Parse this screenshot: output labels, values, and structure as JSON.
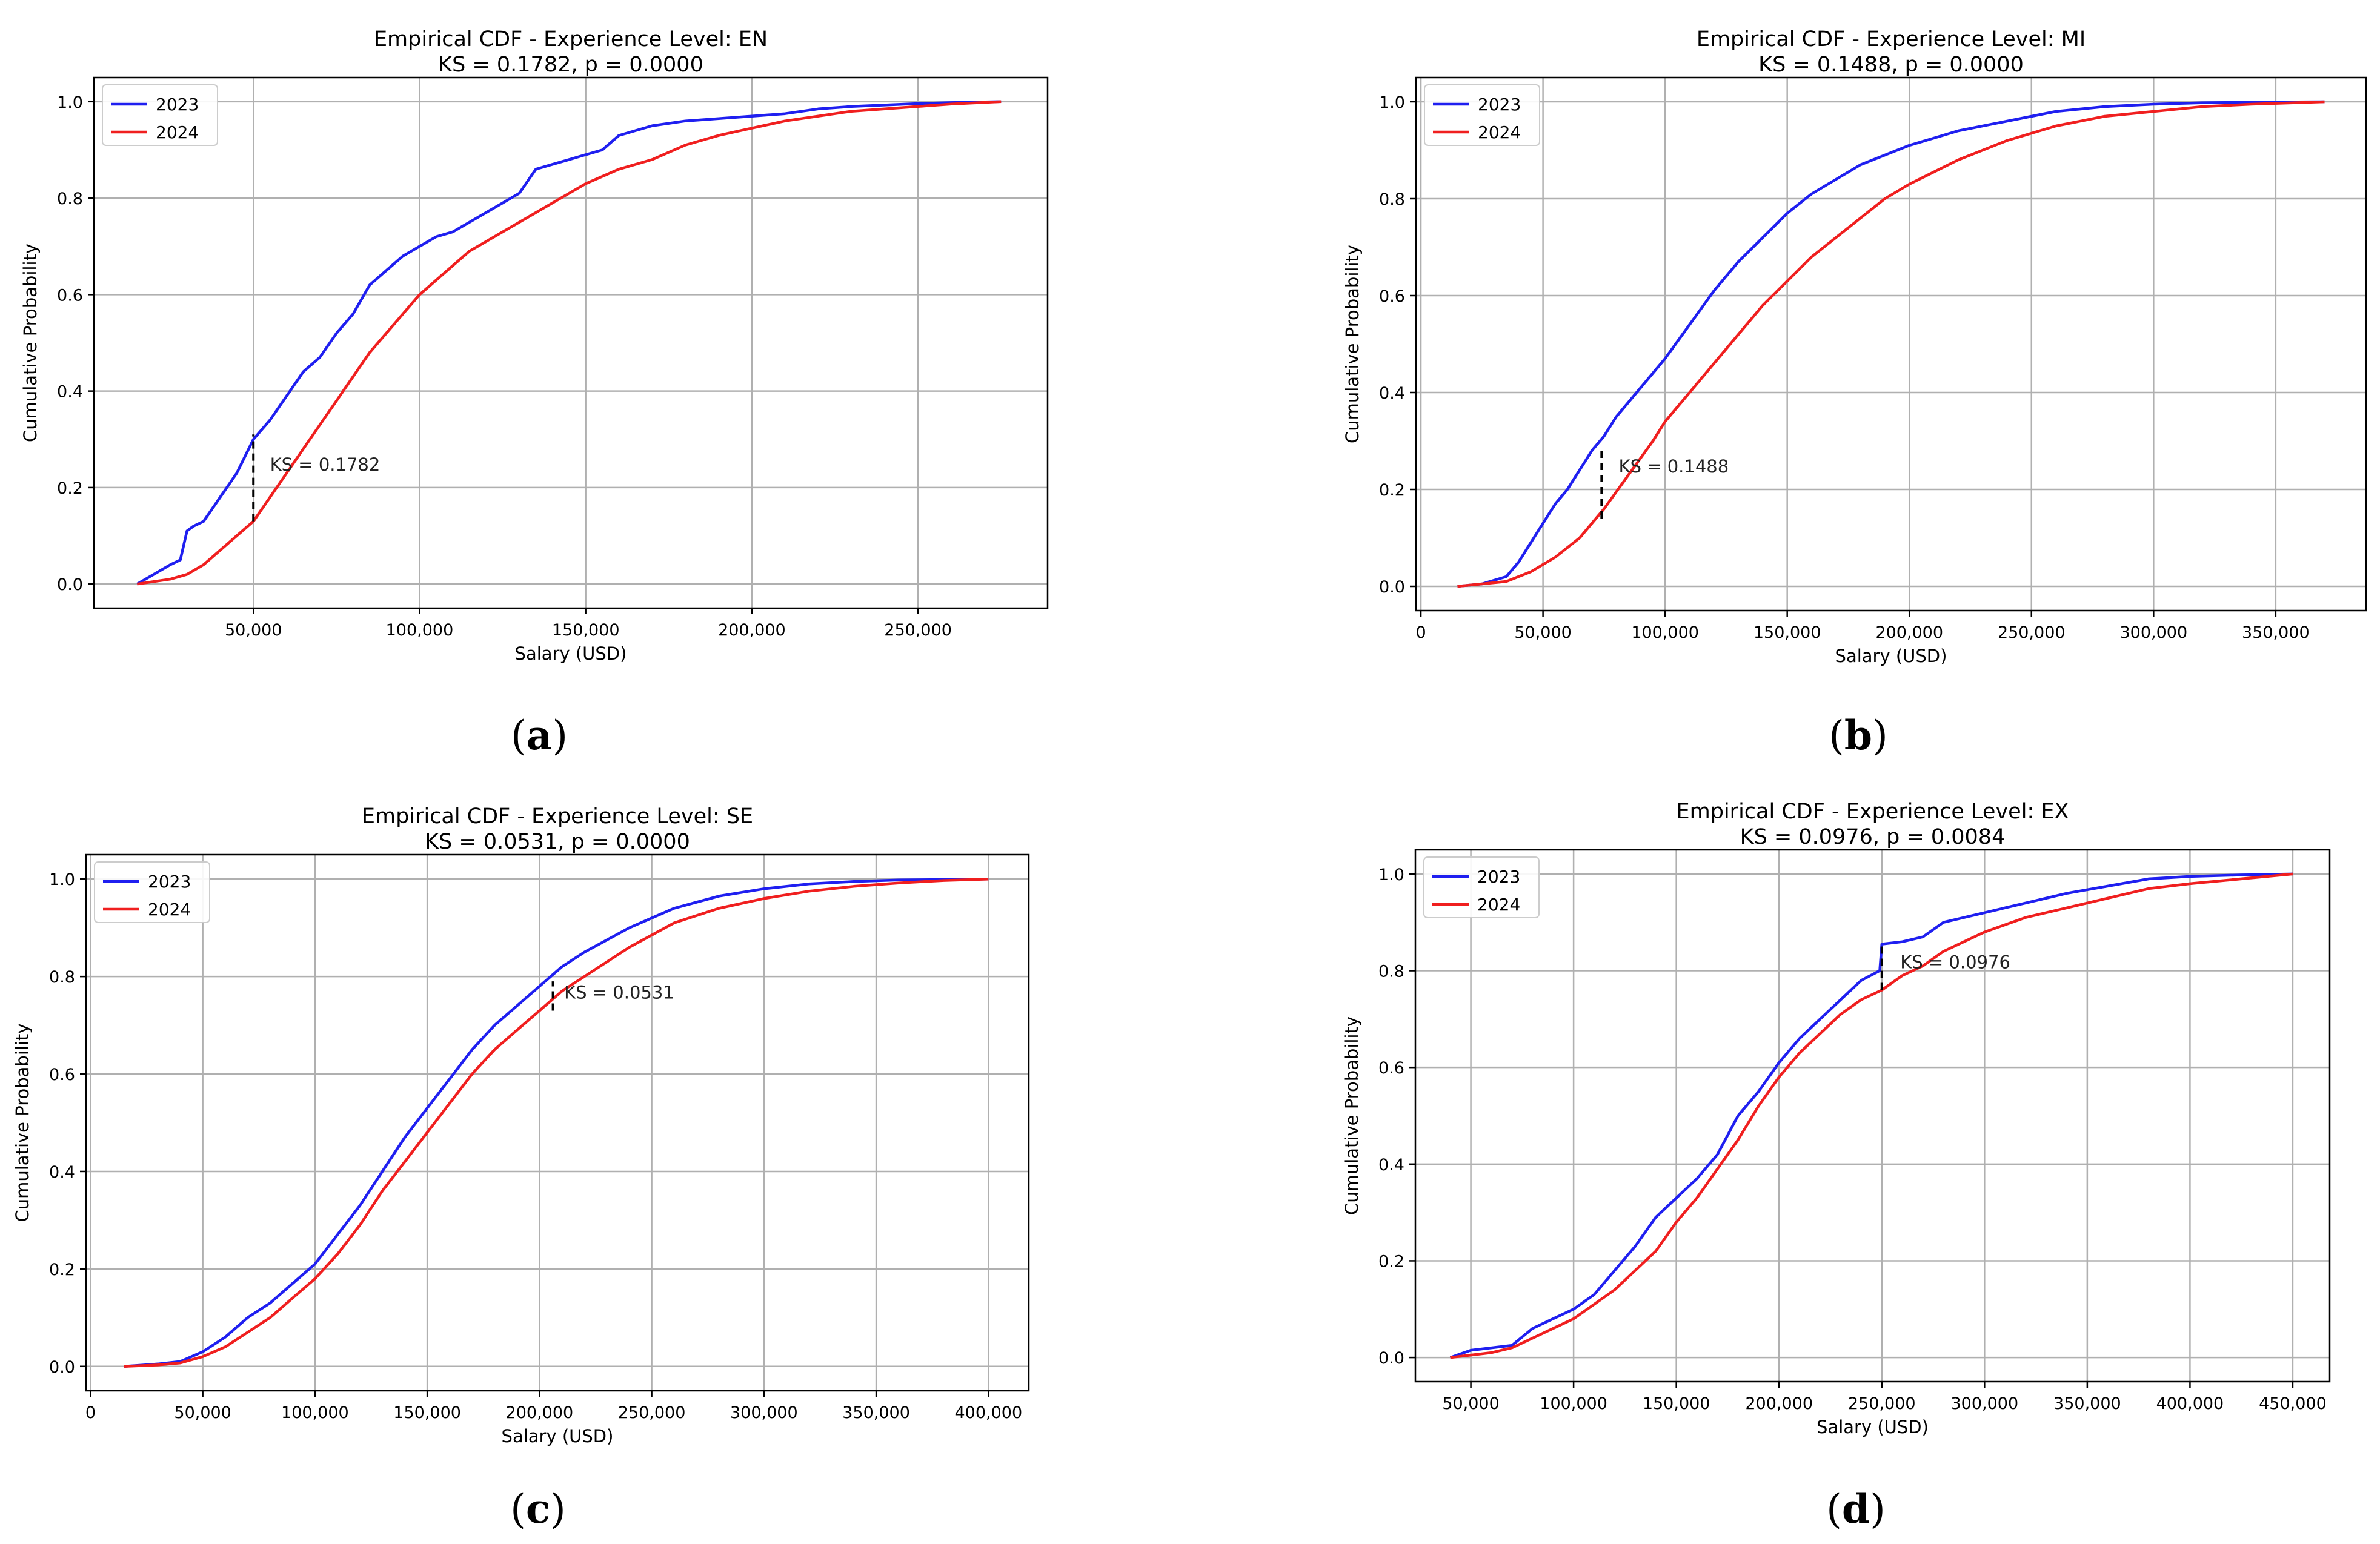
{
  "figure": {
    "panel_labels": [
      "(a)",
      "(b)",
      "(c)",
      "(d)"
    ],
    "panel_letters": [
      "a",
      "b",
      "c",
      "d"
    ]
  },
  "colors": {
    "series_2023": "#1f1ff0",
    "series_2024": "#f01f1f",
    "grid": "#b0b0b0",
    "ks_line": "#000000"
  },
  "chart_data": [
    {
      "type": "line",
      "title": "Empirical CDF - Experience Level: EN",
      "subtitle": "KS = 0.1782, p = 0.0000",
      "xlabel": "Salary (USD)",
      "ylabel": "Cumulative Probability",
      "xlim": [
        2000,
        289000
      ],
      "ylim": [
        -0.05,
        1.05
      ],
      "xticks": [
        50000,
        100000,
        150000,
        200000,
        250000
      ],
      "xtick_labels": [
        "50,000",
        "100,000",
        "150,000",
        "200,000",
        "250,000"
      ],
      "yticks": [
        0.0,
        0.2,
        0.4,
        0.6,
        0.8,
        1.0
      ],
      "ytick_labels": [
        "0.0",
        "0.2",
        "0.4",
        "0.6",
        "0.8",
        "1.0"
      ],
      "grid": true,
      "legend": "top-left",
      "series": [
        {
          "name": "2023",
          "x": [
            15000,
            20000,
            25000,
            28000,
            30000,
            32000,
            35000,
            40000,
            45000,
            50000,
            55000,
            60000,
            65000,
            70000,
            75000,
            80000,
            85000,
            90000,
            95000,
            100000,
            105000,
            110000,
            115000,
            120000,
            125000,
            130000,
            135000,
            140000,
            145000,
            150000,
            155000,
            160000,
            170000,
            180000,
            190000,
            200000,
            210000,
            220000,
            230000,
            240000,
            250000,
            260000,
            275000
          ],
          "y": [
            0.0,
            0.02,
            0.04,
            0.05,
            0.11,
            0.12,
            0.13,
            0.18,
            0.23,
            0.3,
            0.34,
            0.39,
            0.44,
            0.47,
            0.52,
            0.56,
            0.62,
            0.65,
            0.68,
            0.7,
            0.72,
            0.73,
            0.75,
            0.77,
            0.79,
            0.81,
            0.86,
            0.87,
            0.88,
            0.89,
            0.9,
            0.93,
            0.95,
            0.96,
            0.965,
            0.97,
            0.975,
            0.985,
            0.99,
            0.993,
            0.996,
            0.998,
            1.0
          ]
        },
        {
          "name": "2024",
          "x": [
            15000,
            20000,
            25000,
            30000,
            35000,
            40000,
            45000,
            50000,
            55000,
            60000,
            65000,
            70000,
            75000,
            80000,
            85000,
            90000,
            95000,
            100000,
            105000,
            110000,
            115000,
            120000,
            125000,
            130000,
            135000,
            140000,
            150000,
            160000,
            170000,
            180000,
            190000,
            200000,
            210000,
            220000,
            230000,
            240000,
            250000,
            260000,
            275000
          ],
          "y": [
            0.0,
            0.005,
            0.01,
            0.02,
            0.04,
            0.07,
            0.1,
            0.13,
            0.18,
            0.23,
            0.28,
            0.33,
            0.38,
            0.43,
            0.48,
            0.52,
            0.56,
            0.6,
            0.63,
            0.66,
            0.69,
            0.71,
            0.73,
            0.75,
            0.77,
            0.79,
            0.83,
            0.86,
            0.88,
            0.91,
            0.93,
            0.945,
            0.96,
            0.97,
            0.98,
            0.985,
            0.99,
            0.995,
            1.0
          ]
        }
      ],
      "ks_line": {
        "x": 50000,
        "y_low": 0.13,
        "y_high": 0.31
      },
      "annotation": {
        "text": "KS = 0.1782",
        "x": 55000,
        "y": 0.25
      }
    },
    {
      "type": "line",
      "title": "Empirical CDF - Experience Level: MI",
      "subtitle": "KS = 0.1488, p = 0.0000",
      "xlabel": "Salary (USD)",
      "ylabel": "Cumulative Probability",
      "xlim": [
        -2000,
        387000
      ],
      "ylim": [
        -0.05,
        1.05
      ],
      "xticks": [
        0,
        50000,
        100000,
        150000,
        200000,
        250000,
        300000,
        350000
      ],
      "xtick_labels": [
        "0",
        "50,000",
        "100,000",
        "150,000",
        "200,000",
        "250,000",
        "300,000",
        "350,000"
      ],
      "yticks": [
        0.0,
        0.2,
        0.4,
        0.6,
        0.8,
        1.0
      ],
      "ytick_labels": [
        "0.0",
        "0.2",
        "0.4",
        "0.6",
        "0.8",
        "1.0"
      ],
      "grid": true,
      "legend": "top-left",
      "series": [
        {
          "name": "2023",
          "x": [
            15000,
            25000,
            35000,
            40000,
            45000,
            50000,
            55000,
            60000,
            65000,
            70000,
            75000,
            80000,
            85000,
            90000,
            95000,
            100000,
            110000,
            120000,
            130000,
            140000,
            150000,
            160000,
            170000,
            180000,
            190000,
            200000,
            220000,
            240000,
            260000,
            280000,
            300000,
            320000,
            340000,
            370000
          ],
          "y": [
            0.0,
            0.005,
            0.02,
            0.05,
            0.09,
            0.13,
            0.17,
            0.2,
            0.24,
            0.28,
            0.31,
            0.35,
            0.38,
            0.41,
            0.44,
            0.47,
            0.54,
            0.61,
            0.67,
            0.72,
            0.77,
            0.81,
            0.84,
            0.87,
            0.89,
            0.91,
            0.94,
            0.96,
            0.98,
            0.99,
            0.995,
            0.998,
            0.999,
            1.0
          ]
        },
        {
          "name": "2024",
          "x": [
            15000,
            25000,
            35000,
            45000,
            55000,
            65000,
            75000,
            85000,
            95000,
            100000,
            110000,
            120000,
            130000,
            140000,
            150000,
            160000,
            170000,
            180000,
            190000,
            200000,
            220000,
            240000,
            260000,
            280000,
            300000,
            320000,
            340000,
            370000
          ],
          "y": [
            0.0,
            0.005,
            0.01,
            0.03,
            0.06,
            0.1,
            0.16,
            0.23,
            0.3,
            0.34,
            0.4,
            0.46,
            0.52,
            0.58,
            0.63,
            0.68,
            0.72,
            0.76,
            0.8,
            0.83,
            0.88,
            0.92,
            0.95,
            0.97,
            0.98,
            0.99,
            0.995,
            1.0
          ]
        }
      ],
      "ks_line": {
        "x": 74000,
        "y_low": 0.14,
        "y_high": 0.29
      },
      "annotation": {
        "text": "KS = 0.1488",
        "x": 81000,
        "y": 0.25
      }
    },
    {
      "type": "line",
      "title": "Empirical CDF - Experience Level: SE",
      "subtitle": "KS = 0.0531, p = 0.0000",
      "xlabel": "Salary (USD)",
      "ylabel": "Cumulative Probability",
      "xlim": [
        -2000,
        418000
      ],
      "ylim": [
        -0.05,
        1.05
      ],
      "xticks": [
        0,
        50000,
        100000,
        150000,
        200000,
        250000,
        300000,
        350000,
        400000
      ],
      "xtick_labels": [
        "0",
        "50,000",
        "100,000",
        "150,000",
        "200,000",
        "250,000",
        "300,000",
        "350,000",
        "400,000"
      ],
      "yticks": [
        0.0,
        0.2,
        0.4,
        0.6,
        0.8,
        1.0
      ],
      "ytick_labels": [
        "0.0",
        "0.2",
        "0.4",
        "0.6",
        "0.8",
        "1.0"
      ],
      "grid": true,
      "legend": "top-left",
      "series": [
        {
          "name": "2023",
          "x": [
            15000,
            30000,
            40000,
            50000,
            60000,
            70000,
            80000,
            90000,
            100000,
            110000,
            120000,
            130000,
            140000,
            150000,
            160000,
            170000,
            180000,
            190000,
            200000,
            210000,
            220000,
            240000,
            260000,
            280000,
            300000,
            320000,
            340000,
            360000,
            380000,
            400000
          ],
          "y": [
            0.0,
            0.005,
            0.01,
            0.03,
            0.06,
            0.1,
            0.13,
            0.17,
            0.21,
            0.27,
            0.33,
            0.4,
            0.47,
            0.53,
            0.59,
            0.65,
            0.7,
            0.74,
            0.78,
            0.82,
            0.85,
            0.9,
            0.94,
            0.965,
            0.98,
            0.99,
            0.995,
            0.998,
            0.999,
            1.0
          ]
        },
        {
          "name": "2024",
          "x": [
            15000,
            30000,
            40000,
            50000,
            60000,
            70000,
            80000,
            90000,
            100000,
            110000,
            120000,
            130000,
            140000,
            150000,
            160000,
            170000,
            180000,
            190000,
            200000,
            210000,
            220000,
            240000,
            260000,
            280000,
            300000,
            320000,
            340000,
            360000,
            380000,
            400000
          ],
          "y": [
            0.0,
            0.003,
            0.007,
            0.02,
            0.04,
            0.07,
            0.1,
            0.14,
            0.18,
            0.23,
            0.29,
            0.36,
            0.42,
            0.48,
            0.54,
            0.6,
            0.65,
            0.69,
            0.73,
            0.77,
            0.8,
            0.86,
            0.91,
            0.94,
            0.96,
            0.975,
            0.985,
            0.992,
            0.997,
            1.0
          ]
        }
      ],
      "ks_line": {
        "x": 206000,
        "y_low": 0.73,
        "y_high": 0.79
      },
      "annotation": {
        "text": "KS = 0.0531",
        "x": 211000,
        "y": 0.77
      }
    },
    {
      "type": "line",
      "title": "Empirical CDF - Experience Level: EX",
      "subtitle": "KS = 0.0976, p = 0.0084",
      "xlabel": "Salary (USD)",
      "ylabel": "Cumulative Probability",
      "xlim": [
        23000,
        468000
      ],
      "ylim": [
        -0.05,
        1.05
      ],
      "xticks": [
        50000,
        100000,
        150000,
        200000,
        250000,
        300000,
        350000,
        400000,
        450000
      ],
      "xtick_labels": [
        "50,000",
        "100,000",
        "150,000",
        "200,000",
        "250,000",
        "300,000",
        "350,000",
        "400,000",
        "450,000"
      ],
      "yticks": [
        0.0,
        0.2,
        0.4,
        0.6,
        0.8,
        1.0
      ],
      "ytick_labels": [
        "0.0",
        "0.2",
        "0.4",
        "0.6",
        "0.8",
        "1.0"
      ],
      "grid": true,
      "legend": "top-left",
      "series": [
        {
          "name": "2023",
          "x": [
            40000,
            50000,
            60000,
            70000,
            80000,
            90000,
            100000,
            110000,
            120000,
            130000,
            140000,
            150000,
            160000,
            170000,
            180000,
            190000,
            200000,
            210000,
            220000,
            230000,
            240000,
            249000,
            250000,
            260000,
            270000,
            280000,
            300000,
            320000,
            340000,
            360000,
            380000,
            400000,
            425000,
            450000
          ],
          "y": [
            0.0,
            0.015,
            0.02,
            0.025,
            0.06,
            0.08,
            0.1,
            0.13,
            0.18,
            0.23,
            0.29,
            0.33,
            0.37,
            0.42,
            0.5,
            0.55,
            0.61,
            0.66,
            0.7,
            0.74,
            0.78,
            0.8,
            0.855,
            0.86,
            0.87,
            0.9,
            0.92,
            0.94,
            0.96,
            0.975,
            0.99,
            0.995,
            0.998,
            1.0
          ]
        },
        {
          "name": "2024",
          "x": [
            40000,
            50000,
            60000,
            70000,
            80000,
            90000,
            100000,
            110000,
            120000,
            130000,
            140000,
            150000,
            160000,
            170000,
            180000,
            190000,
            200000,
            210000,
            220000,
            230000,
            240000,
            250000,
            260000,
            270000,
            280000,
            300000,
            320000,
            340000,
            360000,
            380000,
            400000,
            425000,
            450000
          ],
          "y": [
            0.0,
            0.005,
            0.01,
            0.02,
            0.04,
            0.06,
            0.08,
            0.11,
            0.14,
            0.18,
            0.22,
            0.28,
            0.33,
            0.39,
            0.45,
            0.52,
            0.58,
            0.63,
            0.67,
            0.71,
            0.74,
            0.76,
            0.79,
            0.81,
            0.84,
            0.88,
            0.91,
            0.93,
            0.95,
            0.97,
            0.98,
            0.99,
            1.0
          ]
        }
      ],
      "ks_line": {
        "x": 250000,
        "y_low": 0.76,
        "y_high": 0.855
      },
      "annotation": {
        "text": "KS = 0.0976",
        "x": 259000,
        "y": 0.82
      }
    }
  ]
}
